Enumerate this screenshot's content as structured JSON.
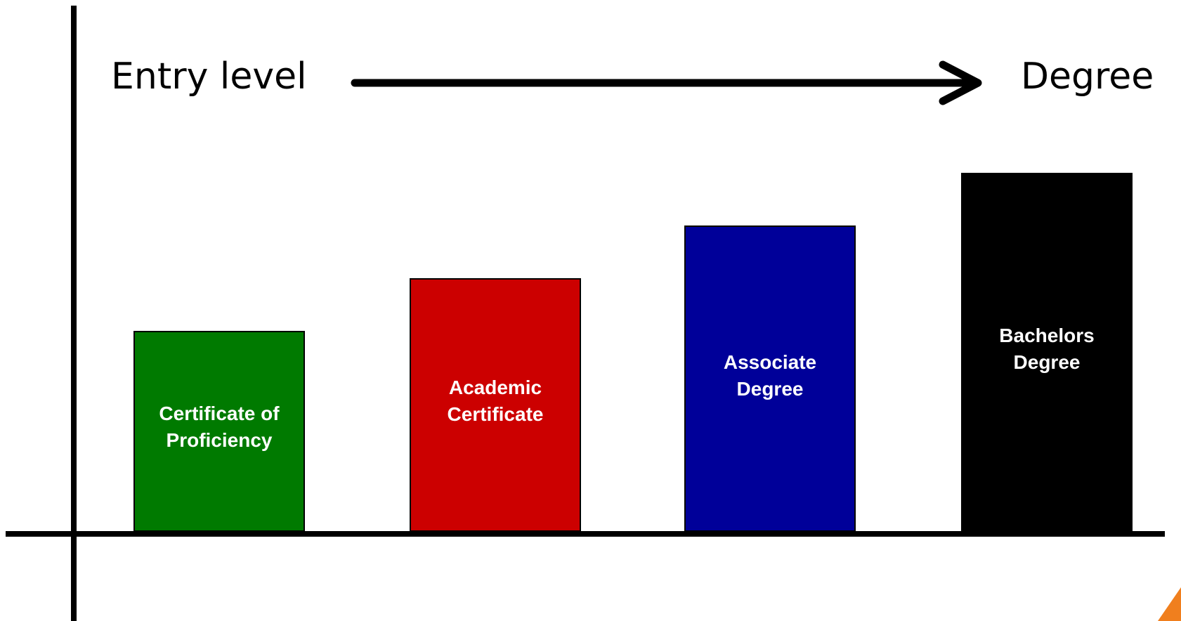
{
  "header": {
    "start_label": "Entry level",
    "end_label": "Degree"
  },
  "levels": [
    {
      "lines": [
        "Certificate of",
        "Proficiency"
      ],
      "color": "#007A00",
      "rank": 1
    },
    {
      "lines": [
        "Academic",
        "Certificate"
      ],
      "color": "#CC0000",
      "rank": 2
    },
    {
      "lines": [
        "Associate",
        "Degree"
      ],
      "color": "#000099",
      "rank": 3
    },
    {
      "lines": [
        "Bachelors",
        "Degree"
      ],
      "color": "#000000",
      "rank": 4
    }
  ],
  "colors": {
    "axis": "#000000",
    "accent_corner": "#F07F1E"
  }
}
